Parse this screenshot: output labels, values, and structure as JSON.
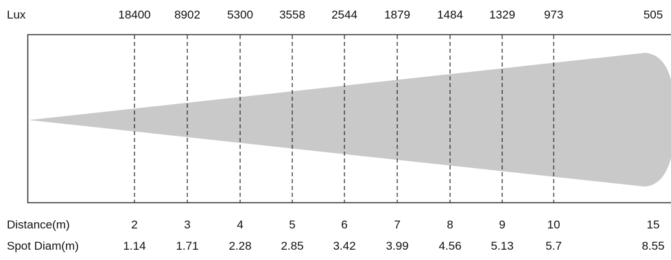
{
  "lux_label": "Lux",
  "distance_label": "Distance(m)",
  "spot_label": "Spot Diam(m)",
  "colors": {
    "beam": "#c9c9c9",
    "frame": "#333333",
    "text": "#111111"
  },
  "columns": [
    {
      "lux": "18400",
      "distance": "2",
      "spot": "1.14"
    },
    {
      "lux": "8902",
      "distance": "3",
      "spot": "1.71"
    },
    {
      "lux": "5300",
      "distance": "4",
      "spot": "2.28"
    },
    {
      "lux": "3558",
      "distance": "5",
      "spot": "2.85"
    },
    {
      "lux": "2544",
      "distance": "6",
      "spot": "3.42"
    },
    {
      "lux": "1879",
      "distance": "7",
      "spot": "3.99"
    },
    {
      "lux": "1484",
      "distance": "8",
      "spot": "4.56"
    },
    {
      "lux": "1329",
      "distance": "9",
      "spot": "5.13"
    },
    {
      "lux": "973",
      "distance": "10",
      "spot": "5.7"
    },
    {
      "lux": "505",
      "distance": "15",
      "spot": "8.55"
    }
  ]
}
